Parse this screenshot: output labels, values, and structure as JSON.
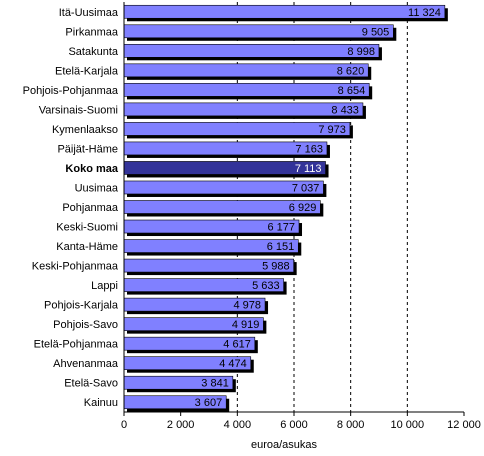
{
  "chart_data": {
    "type": "bar",
    "orientation": "horizontal",
    "categories": [
      "Itä-Uusimaa",
      "Pirkanmaa",
      "Satakunta",
      "Etelä-Karjala",
      "Pohjois-Pohjanmaa",
      "Varsinais-Suomi",
      "Kymenlaakso",
      "Päijät-Häme",
      "Koko maa",
      "Uusimaa",
      "Pohjanmaa",
      "Keski-Suomi",
      "Kanta-Häme",
      "Keski-Pohjanmaa",
      "Lappi",
      "Pohjois-Karjala",
      "Pohjois-Savo",
      "Etelä-Pohjanmaa",
      "Ahvenanmaa",
      "Etelä-Savo",
      "Kainuu"
    ],
    "values": [
      11324,
      9505,
      8998,
      8620,
      8654,
      8433,
      7973,
      7163,
      7113,
      7037,
      6929,
      6177,
      6151,
      5988,
      5633,
      4978,
      4919,
      4617,
      4474,
      3841,
      3607
    ],
    "value_labels": [
      "11 324",
      "9 505",
      "8 998",
      "8 620",
      "8 654",
      "8 433",
      "7 973",
      "7 163",
      "7 113",
      "7 037",
      "6 929",
      "6 177",
      "6 151",
      "5 988",
      "5 633",
      "4 978",
      "4 919",
      "4 617",
      "4 474",
      "3 841",
      "3 607"
    ],
    "highlight_index": 8,
    "xlim": [
      0,
      12000
    ],
    "xticks": [
      0,
      2000,
      4000,
      6000,
      8000,
      10000,
      12000
    ],
    "xtick_labels": [
      "0",
      "2 000",
      "4 000",
      "6 000",
      "8 000",
      "10 000",
      "12 000"
    ],
    "xlabel": "euroa/asukas",
    "ylabel": "",
    "title": "",
    "grid": "vertical dashed at 4000, 6000, 8000, 10000",
    "colors": {
      "bar": "#8080ff",
      "highlight": "#333399",
      "shadow": "#000000",
      "grid": "#000000"
    }
  }
}
